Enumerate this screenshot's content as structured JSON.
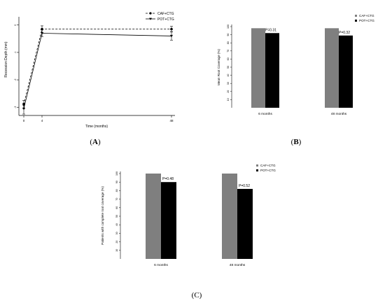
{
  "panels": [
    {
      "label_prefix": "(",
      "label": "A",
      "label_suffix": ")"
    },
    {
      "label_prefix": "(",
      "label": "B",
      "label_suffix": ")"
    },
    {
      "label_prefix": "(",
      "label": "C",
      "label_suffix": ")"
    }
  ],
  "chart_data": [
    {
      "id": "A",
      "type": "line",
      "xlabel": "Time (months)",
      "ylabel": "Recession Depth (mm)",
      "x": [
        0,
        4,
        48
      ],
      "xticks": [
        "0",
        "4",
        "48"
      ],
      "yticks": [
        "-3",
        "-2",
        "-1",
        "0"
      ],
      "ylim": [
        -3.3,
        0.3
      ],
      "legend_position": "top-right",
      "series": [
        {
          "name": "CAF+CTG",
          "values": [
            -2.9,
            -0.15,
            -0.15
          ],
          "err": [
            0.15,
            0.12,
            0.1
          ],
          "style": "dashed",
          "marker": "circle"
        },
        {
          "name": "POT+CTG",
          "values": [
            -3.05,
            -0.3,
            -0.4
          ],
          "err": [
            0.2,
            0.12,
            0.15
          ],
          "style": "solid",
          "marker": "triangle"
        }
      ]
    },
    {
      "id": "B",
      "type": "bar",
      "ylabel": "Mean Root Coverage (%)",
      "categories": [
        "6 months",
        "48 months"
      ],
      "yticks": [
        "10",
        "20",
        "30",
        "40",
        "50",
        "60",
        "70",
        "80",
        "90",
        "100"
      ],
      "ylim": [
        0,
        100
      ],
      "legend_position": "top-right",
      "series": [
        {
          "name": "CAF+CTG",
          "values": [
            98,
            98
          ],
          "color": "#7f7f7f"
        },
        {
          "name": "POT+CTG",
          "values": [
            92,
            89
          ],
          "color": "#000000"
        }
      ],
      "annotations": [
        "P=0.31",
        "P=0.32"
      ]
    },
    {
      "id": "C",
      "type": "bar",
      "ylabel": "Patients with complete root coverage (%)",
      "categories": [
        "6 months",
        "48 months"
      ],
      "yticks": [
        "10",
        "20",
        "30",
        "40",
        "50",
        "60",
        "70",
        "80",
        "90",
        "100"
      ],
      "ylim": [
        0,
        100
      ],
      "legend_position": "top-right",
      "series": [
        {
          "name": "CAF+CTG",
          "values": [
            100,
            100
          ],
          "color": "#7f7f7f"
        },
        {
          "name": "POT+CTG",
          "values": [
            90,
            82
          ],
          "color": "#000000"
        }
      ],
      "annotations": [
        "P=0.48",
        "P=0.52"
      ]
    }
  ]
}
